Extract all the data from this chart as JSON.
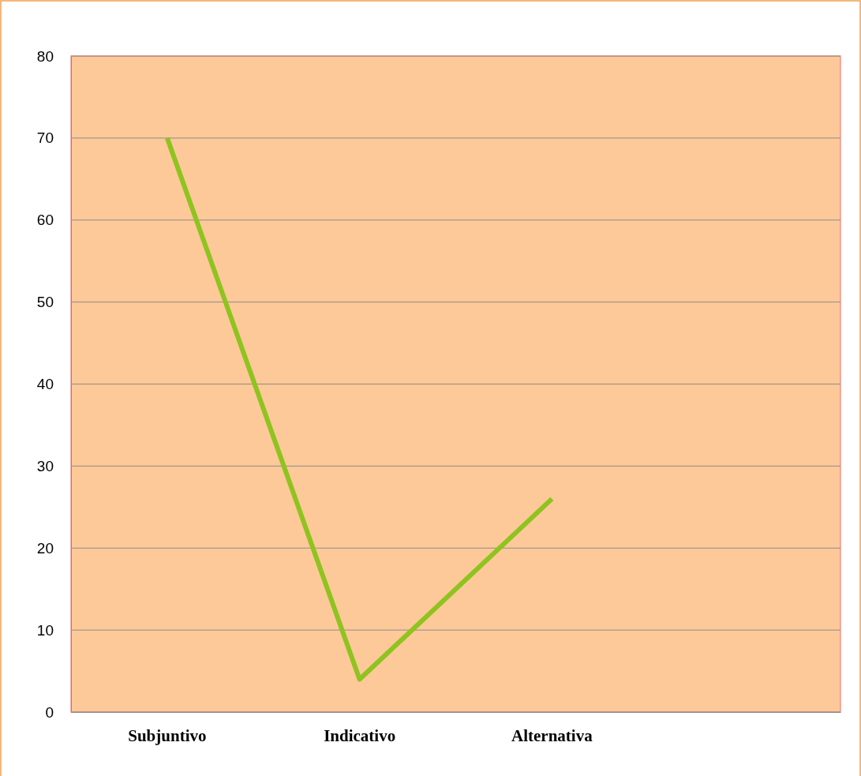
{
  "chart_data": {
    "type": "line",
    "categories": [
      "Subjuntivo",
      "Indicativo",
      "Alternativa",
      null
    ],
    "series": [
      {
        "color": "#8fc31f",
        "values": [
          70,
          4,
          26,
          null
        ]
      }
    ],
    "ylim": [
      0,
      80
    ],
    "yticks": [
      0,
      10,
      20,
      30,
      40,
      50,
      60,
      70,
      80
    ],
    "grid": "y",
    "marker": "none",
    "line_style": "solid"
  }
}
